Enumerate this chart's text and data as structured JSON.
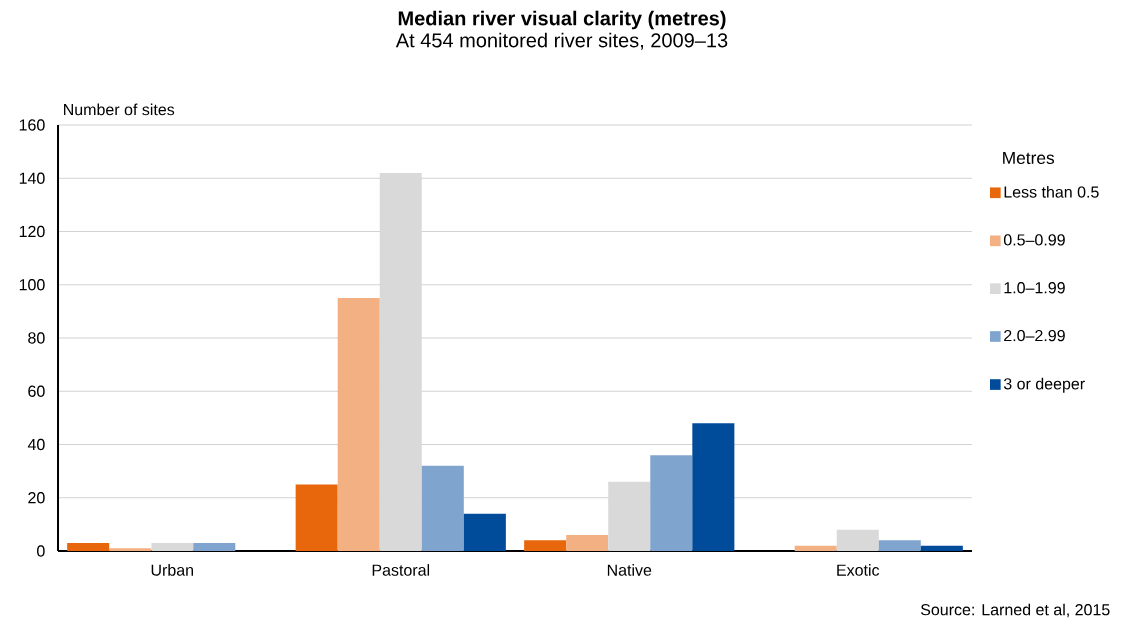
{
  "chart_data": {
    "type": "bar",
    "title": "Median river visual clarity (metres)",
    "subtitle": "At 454 monitored river sites, 2009–13",
    "ylabel": "Number of sites",
    "legend_title": "Metres",
    "categories": [
      "Urban",
      "Pastoral",
      "Native",
      "Exotic"
    ],
    "series": [
      {
        "name": "Less than 0.5",
        "color": "#e8670c",
        "values": [
          3,
          25,
          4,
          0
        ]
      },
      {
        "name": "0.5–0.99",
        "color": "#f2b083",
        "values": [
          1,
          95,
          6,
          2
        ]
      },
      {
        "name": "1.0–1.99",
        "color": "#d9d9d9",
        "values": [
          3,
          142,
          26,
          8
        ]
      },
      {
        "name": "2.0–2.99",
        "color": "#7fa5cf",
        "values": [
          3,
          32,
          36,
          4
        ]
      },
      {
        "name": "3 or deeper",
        "color": "#004c9b",
        "values": [
          0,
          14,
          48,
          2
        ]
      }
    ],
    "ylim": [
      0,
      160
    ],
    "yticks": [
      0,
      20,
      40,
      60,
      80,
      100,
      120,
      140,
      160
    ],
    "grid": "y",
    "legend": "right",
    "annotations": [
      "Source: Larned et al, 2015"
    ]
  }
}
